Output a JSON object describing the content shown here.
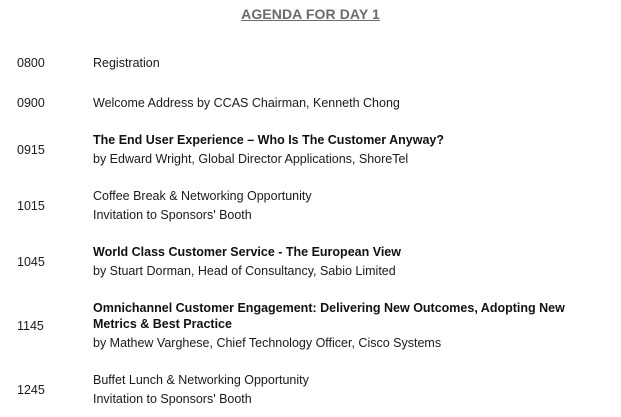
{
  "agenda": {
    "title": "AGENDA FOR DAY 1",
    "items": [
      {
        "time": "0800",
        "title": "Registration",
        "sub": ""
      },
      {
        "time": "0900",
        "title": "Welcome Address by CCAS Chairman, Kenneth Chong",
        "sub": ""
      },
      {
        "time": "0915",
        "title": "The End User Experience – Who Is The Customer Anyway?",
        "sub": "by Edward Wright, Global Director Applications, ShoreTel"
      },
      {
        "time": "1015",
        "title": "Coffee Break & Networking Opportunity",
        "sub": "Invitation to Sponsors' Booth"
      },
      {
        "time": "1045",
        "title": "World Class Customer Service - The European View",
        "sub": "by Stuart Dorman, Head of Consultancy, Sabio Limited"
      },
      {
        "time": "1145",
        "title": "Omnichannel Customer Engagement: Delivering New Outcomes, Adopting New Metrics & Best Practice",
        "sub": "by Mathew Varghese, Chief Technology Officer, Cisco Systems"
      },
      {
        "time": "1245",
        "title": "Buffet Lunch & Networking Opportunity",
        "sub": "Invitation to Sponsors' Booth"
      }
    ]
  }
}
